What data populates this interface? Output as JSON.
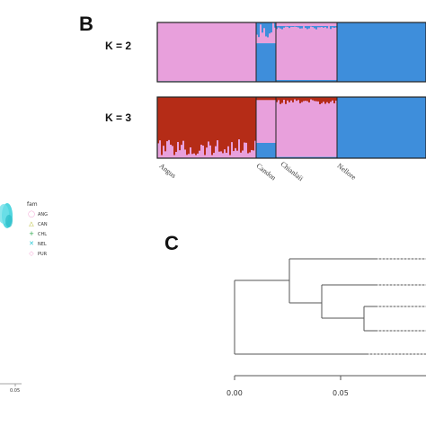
{
  "panels": {
    "b": "B",
    "c": "C"
  },
  "structure": {
    "k2_label": "K = 2",
    "k3_label": "K = 3",
    "populations": [
      "Angus",
      "Candon",
      "Chianlaii",
      "Nellore"
    ]
  },
  "pca": {
    "legend_title": "fam",
    "legend": [
      {
        "label": "ANG",
        "symbol": "◯",
        "color": "#f29bd0"
      },
      {
        "label": "CAN",
        "symbol": "△",
        "color": "#b5b82a"
      },
      {
        "label": "CHL",
        "symbol": "+",
        "color": "#2fa84f"
      },
      {
        "label": "NEL",
        "symbol": "✕",
        "color": "#2ec9d6"
      },
      {
        "label": "PUR",
        "symbol": "◇",
        "color": "#f29bd0"
      }
    ],
    "axis_tick": "0.05"
  },
  "colors": {
    "pink": "#e8a0dc",
    "blue": "#3e8edb",
    "red": "#b52c17",
    "cyan": "#3fd2dc"
  },
  "chart_data": [
    {
      "type": "bar",
      "title": "K = 2",
      "stacked": true,
      "categories": [
        "Angus",
        "Candon",
        "Chianlaii",
        "Nellore"
      ],
      "series": [
        {
          "values": [
            0.99,
            0.35,
            0.97,
            0.0
          ]
        },
        {
          "values": [
            0.01,
            0.65,
            0.03,
            1.0
          ]
        }
      ]
    },
    {
      "type": "bar",
      "title": "K = 3",
      "stacked": true,
      "categories": [
        "Angus",
        "Candon",
        "Chianlaii",
        "Nellore"
      ],
      "series": [
        {
          "values": [
            0.95,
            0.05,
            0.04,
            0.0
          ]
        },
        {
          "values": [
            0.05,
            0.7,
            0.94,
            0.0
          ]
        },
        {
          "values": [
            0.0,
            0.25,
            0.02,
            1.0
          ]
        }
      ]
    },
    {
      "type": "tree",
      "x_ticks": [
        "0.00",
        "0.05"
      ],
      "xlim": [
        0.0,
        0.08
      ]
    }
  ]
}
